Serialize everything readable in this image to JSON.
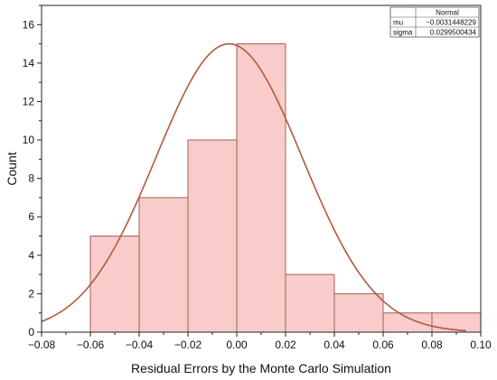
{
  "chart_data": {
    "type": "bar",
    "subtype": "histogram-with-normal-fit",
    "xlabel": "Residual Errors by the Monte Carlo Simulation",
    "ylabel": "Count",
    "xlim": [
      -0.08,
      0.1
    ],
    "ylim": [
      0,
      17
    ],
    "x_ticks": [
      -0.08,
      -0.06,
      -0.04,
      -0.02,
      0.0,
      0.02,
      0.04,
      0.06,
      0.08,
      0.1
    ],
    "x_tick_labels": [
      "−0.08",
      "−0.06",
      "−0.04",
      "−0.02",
      "0.00",
      "0.02",
      "0.04",
      "0.06",
      "0.08",
      "0.10"
    ],
    "y_ticks": [
      0,
      2,
      4,
      6,
      8,
      10,
      12,
      14,
      16
    ],
    "y_tick_labels": [
      "0",
      "2",
      "4",
      "6",
      "8",
      "10",
      "12",
      "14",
      "16"
    ],
    "bins": [
      {
        "x0": -0.06,
        "x1": -0.04,
        "count": 5
      },
      {
        "x0": -0.04,
        "x1": -0.02,
        "count": 7
      },
      {
        "x0": -0.02,
        "x1": 0.0,
        "count": 10
      },
      {
        "x0": 0.0,
        "x1": 0.02,
        "count": 15
      },
      {
        "x0": 0.02,
        "x1": 0.04,
        "count": 3
      },
      {
        "x0": 0.04,
        "x1": 0.06,
        "count": 2
      },
      {
        "x0": 0.06,
        "x1": 0.08,
        "count": 1
      },
      {
        "x0": 0.08,
        "x1": 0.1,
        "count": 1
      }
    ],
    "fit": {
      "name": "Normal",
      "mu": -0.0031448229,
      "sigma": 0.0299500434,
      "peak_count": 15,
      "x_range": [
        -0.08,
        0.094
      ]
    },
    "legend": {
      "placement": "top-right",
      "header": "Normal",
      "rows": [
        {
          "label": "mu",
          "value": "−0.0031448229"
        },
        {
          "label": "sigma",
          "value": "0.0299500434"
        }
      ]
    },
    "colors": {
      "bar_fill": "#f9cccc",
      "bar_stroke": "#a0614a",
      "curve": "#b05a3c",
      "axis": "#222222"
    }
  }
}
